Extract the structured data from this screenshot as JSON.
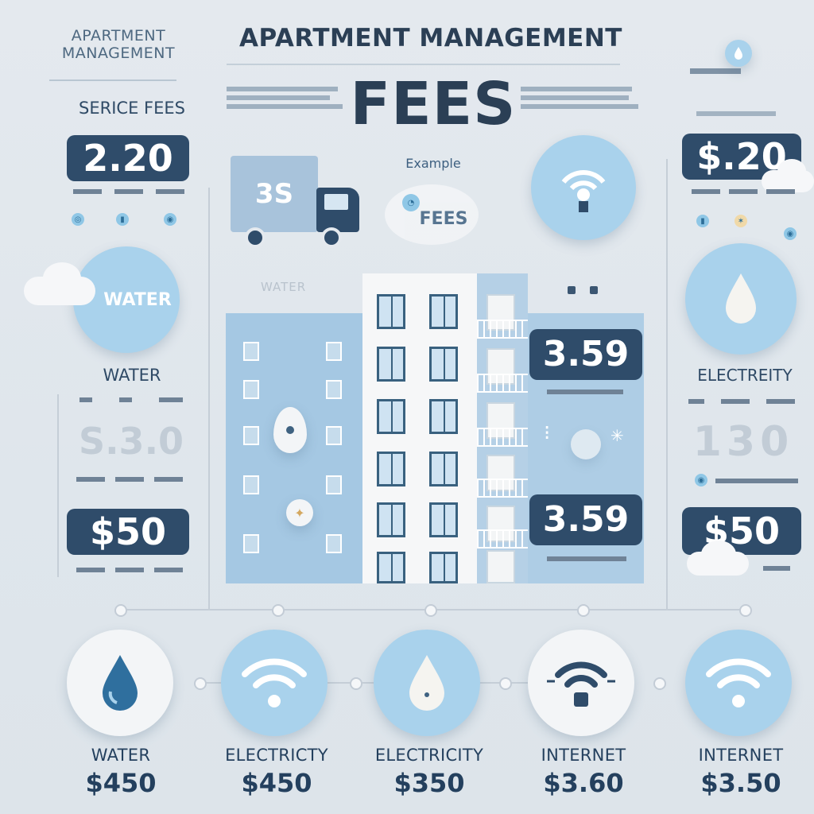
{
  "header": {
    "logo_text": "APARTMENT MANAGEMENT",
    "title": "APARTMENT MANAGEMENT",
    "subtitle": "FEES",
    "example_text": "Example",
    "truck_label": "3S",
    "fees_badge": "FEES",
    "building_label": "WATER"
  },
  "left_panel": {
    "heading": "SERICE FEES",
    "price_1": "2.20",
    "circle_label": "WATER",
    "water_label": "WATER",
    "faded_price": "S.3.0",
    "price_2": "$50"
  },
  "right_panel": {
    "price_1": "$.20",
    "electricity_label": "ELECTREITY",
    "faded_value": "130",
    "price_2": "$50"
  },
  "building": {
    "price_top": "3.59",
    "price_bottom": "3.59"
  },
  "bottom_items": [
    {
      "label": "WATER",
      "price": "$450",
      "icon": "water-drop-icon"
    },
    {
      "label": "ELECTRICTY",
      "price": "$450",
      "icon": "wifi-icon"
    },
    {
      "label": "ELECTRICITY",
      "price": "$350",
      "icon": "water-drop-icon"
    },
    {
      "label": "INTERNET",
      "price": "$3.60",
      "icon": "lightbulb-wifi-icon"
    },
    {
      "label": "INTERNET",
      "price": "$3.50",
      "icon": "wifi-icon"
    }
  ],
  "colors": {
    "dark_navy": "#2f4c6a",
    "light_blue": "#a9d2ec",
    "background": "#e0e6ec"
  }
}
